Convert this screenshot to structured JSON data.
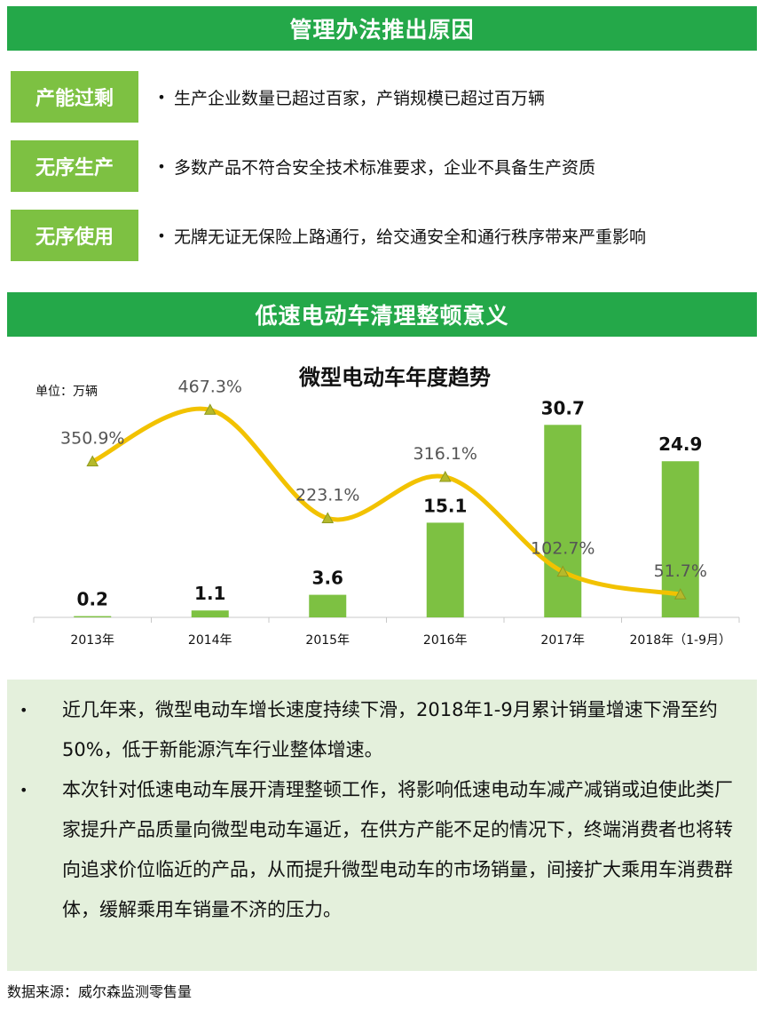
{
  "sections": {
    "reasons_title": "管理办法推出原因",
    "significance_title": "低速电动车清理整顿意义"
  },
  "reasons": [
    {
      "tag": "产能过剩",
      "bullet": "•",
      "text": "生产企业数量已超过百家，产销规模已超过百万辆"
    },
    {
      "tag": "无序生产",
      "bullet": "•",
      "text": "多数产品不符合安全技术标准要求，企业不具备生产资质"
    },
    {
      "tag": "无序使用",
      "bullet": "•",
      "text": "无牌无证无保险上路通行，给交通安全和通行秩序带来严重影响"
    }
  ],
  "chart_data": {
    "type": "bar",
    "title": "微型电动车年度趋势",
    "unit_label": "单位：万辆",
    "categories": [
      "2013年",
      "2014年",
      "2015年",
      "2016年",
      "2017年",
      "2018年（1-9月）"
    ],
    "series": [
      {
        "name": "",
        "type": "bar",
        "values": [
          0.2,
          1.1,
          3.6,
          15.1,
          30.7,
          24.9
        ],
        "labels": [
          "0.2",
          "1.1",
          "3.6",
          "15.1",
          "30.7",
          "24.9"
        ]
      },
      {
        "name": "",
        "type": "line",
        "values": [
          350.9,
          467.3,
          223.1,
          316.1,
          102.7,
          51.7
        ],
        "labels": [
          "350.9%",
          "467.3%",
          "223.1%",
          "316.1%",
          "102.7%",
          "51.7%"
        ]
      }
    ],
    "bar_axis_max": 34,
    "line_axis_max": 560,
    "grid": false,
    "colors": {
      "bar": "#7dc142",
      "line": "#f2c200",
      "marker_fill": "#b5b92b",
      "text": "#111111",
      "line_label": "#555555"
    }
  },
  "summary": [
    {
      "bullet": "•",
      "text": "近几年来，微型电动车增长速度持续下滑，2018年1-9月累计销量增速下滑至约50%，低于新能源汽车行业整体增速。"
    },
    {
      "bullet": "•",
      "text": "本次针对低速电动车展开清理整顿工作，将影响低速电动车减产减销或迫使此类厂家提升产品质量向微型电动车逼近，在供方产能不足的情况下，终端消费者也将转向追求价位临近的产品，从而提升微型电动车的市场销量，间接扩大乘用车消费群体，缓解乘用车销量不济的压力。"
    }
  ],
  "source": "数据来源：威尔森监测零售量"
}
